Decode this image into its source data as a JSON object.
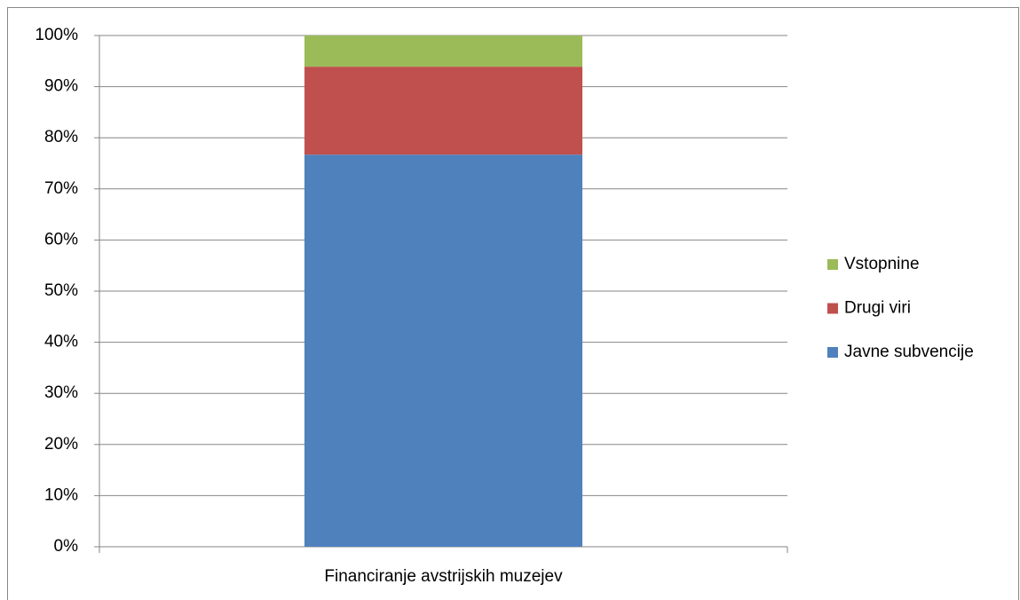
{
  "chart_data": {
    "type": "stacked_bar",
    "categories": [
      "Financiranje avstrijskih muzejev"
    ],
    "series": [
      {
        "name": "Javne subvencije",
        "color": "#4f81bd",
        "values": [
          76.7
        ]
      },
      {
        "name": "Drugi viri",
        "color": "#c0504d",
        "values": [
          17.2
        ]
      },
      {
        "name": "Vstopnine",
        "color": "#9bbb59",
        "values": [
          6.1
        ]
      }
    ],
    "ylim": [
      0,
      100
    ],
    "yticks": [
      {
        "value": 0,
        "label": "0%"
      },
      {
        "value": 10,
        "label": "10%"
      },
      {
        "value": 20,
        "label": "20%"
      },
      {
        "value": 30,
        "label": "30%"
      },
      {
        "value": 40,
        "label": "40%"
      },
      {
        "value": 50,
        "label": "50%"
      },
      {
        "value": 60,
        "label": "60%"
      },
      {
        "value": 70,
        "label": "70%"
      },
      {
        "value": 80,
        "label": "80%"
      },
      {
        "value": 90,
        "label": "90%"
      },
      {
        "value": 100,
        "label": "100%"
      }
    ],
    "grid": true,
    "legend": "right"
  }
}
